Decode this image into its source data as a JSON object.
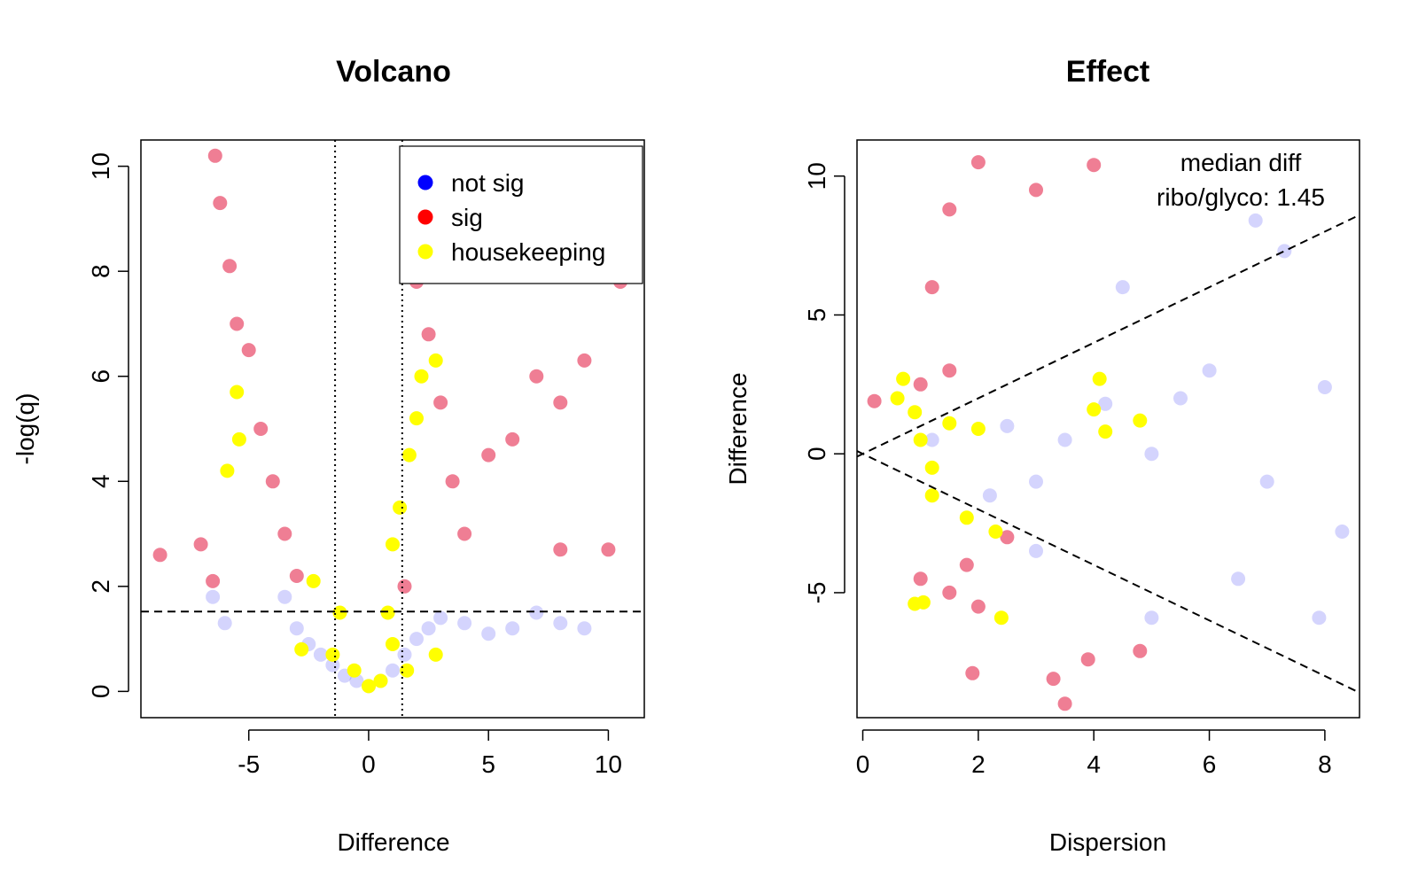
{
  "chart_data": [
    {
      "type": "scatter",
      "title": "Volcano",
      "xlabel": "Difference",
      "ylabel": "-log(q)",
      "xlim": [
        -9.5,
        11.5
      ],
      "ylim": [
        -0.5,
        10.5
      ],
      "xticks": [
        -5,
        0,
        5,
        10
      ],
      "yticks": [
        0,
        2,
        4,
        6,
        8,
        10
      ],
      "grid": false,
      "legend_position": "top-right",
      "legend": [
        {
          "label": "not sig",
          "color": "#0000ff"
        },
        {
          "label": "sig",
          "color": "#ff0000"
        },
        {
          "label": "housekeeping",
          "color": "#ffff00"
        }
      ],
      "reference_lines": {
        "vertical_dotted": [
          -1.4,
          1.4
        ],
        "horizontal_dashed": [
          1.52
        ]
      },
      "series": [
        {
          "name": "not sig",
          "color": "#0000ff",
          "points": [
            [
              -3.5,
              1.8
            ],
            [
              -3,
              1.2
            ],
            [
              -2.5,
              0.9
            ],
            [
              -2,
              0.7
            ],
            [
              -1.5,
              0.5
            ],
            [
              -1,
              0.3
            ],
            [
              -0.5,
              0.2
            ],
            [
              0,
              0.1
            ],
            [
              0.5,
              0.2
            ],
            [
              1,
              0.4
            ],
            [
              1.5,
              0.7
            ],
            [
              2,
              1.0
            ],
            [
              2.5,
              1.2
            ],
            [
              3,
              1.4
            ],
            [
              4,
              1.3
            ],
            [
              5,
              1.1
            ],
            [
              6,
              1.2
            ],
            [
              7,
              1.5
            ],
            [
              8,
              1.3
            ],
            [
              9,
              1.2
            ],
            [
              -6.5,
              1.8
            ],
            [
              -6,
              1.3
            ]
          ]
        },
        {
          "name": "sig",
          "color": "#ff0000",
          "points": [
            [
              -6.4,
              10.2
            ],
            [
              -6.2,
              9.3
            ],
            [
              -5.8,
              8.1
            ],
            [
              -5.5,
              7.0
            ],
            [
              -5,
              6.5
            ],
            [
              -4.5,
              5.0
            ],
            [
              -4,
              4.0
            ],
            [
              -3.5,
              3.0
            ],
            [
              -3,
              2.2
            ],
            [
              -8.7,
              2.6
            ],
            [
              -7,
              2.8
            ],
            [
              -6.5,
              2.1
            ],
            [
              2,
              7.8
            ],
            [
              2.5,
              6.8
            ],
            [
              3,
              5.5
            ],
            [
              3.5,
              4.0
            ],
            [
              4,
              3.0
            ],
            [
              5,
              4.5
            ],
            [
              6,
              4.8
            ],
            [
              7,
              6.0
            ],
            [
              8,
              5.5
            ],
            [
              9,
              6.3
            ],
            [
              10.5,
              7.8
            ],
            [
              10,
              2.7
            ],
            [
              8,
              2.7
            ],
            [
              1.5,
              2.0
            ]
          ]
        },
        {
          "name": "housekeeping",
          "color": "#ffff00",
          "points": [
            [
              -5.5,
              5.7
            ],
            [
              -5.4,
              4.8
            ],
            [
              -5.9,
              4.2
            ],
            [
              -2.3,
              2.1
            ],
            [
              -1.2,
              1.5
            ],
            [
              -2.8,
              0.8
            ],
            [
              -1.5,
              0.7
            ],
            [
              -0.6,
              0.4
            ],
            [
              0,
              0.1
            ],
            [
              0.5,
              0.2
            ],
            [
              0.8,
              1.5
            ],
            [
              1,
              2.8
            ],
            [
              1.3,
              3.5
            ],
            [
              1.7,
              4.5
            ],
            [
              2,
              5.2
            ],
            [
              2.2,
              6.0
            ],
            [
              2.8,
              6.3
            ],
            [
              2.8,
              0.7
            ],
            [
              1.6,
              0.4
            ],
            [
              1,
              0.9
            ]
          ]
        }
      ]
    },
    {
      "type": "scatter",
      "title": "Effect",
      "xlabel": "Dispersion",
      "ylabel": "Difference",
      "xlim": [
        -0.1,
        8.6
      ],
      "ylim": [
        -9.5,
        11.3
      ],
      "xticks": [
        0,
        2,
        4,
        6,
        8
      ],
      "yticks": [
        -5,
        0,
        5,
        10
      ],
      "grid": false,
      "annotation": [
        "median diff",
        "ribo/glyco: 1.45"
      ],
      "reference_lines": {
        "dashed_from_origin_slopes": [
          1.0,
          -1.0
        ]
      },
      "series": [
        {
          "name": "not sig",
          "color": "#0000ff",
          "points": [
            [
              4.2,
              1.8
            ],
            [
              3.5,
              0.5
            ],
            [
              3,
              -1
            ],
            [
              2.5,
              1
            ],
            [
              5,
              0
            ],
            [
              5.5,
              2
            ],
            [
              6,
              3
            ],
            [
              7,
              -1
            ],
            [
              8,
              2.4
            ],
            [
              8.3,
              -2.8
            ],
            [
              7.9,
              -5.9
            ],
            [
              6.8,
              8.4
            ],
            [
              7.3,
              7.3
            ],
            [
              6.5,
              -4.5
            ],
            [
              5,
              -5.9
            ],
            [
              3,
              -3.5
            ],
            [
              2.2,
              -1.5
            ],
            [
              4.5,
              6
            ],
            [
              1.2,
              0.5
            ]
          ]
        },
        {
          "name": "sig",
          "color": "#ff0000",
          "points": [
            [
              1.5,
              -5
            ],
            [
              1,
              -4.5
            ],
            [
              2,
              -5.5
            ],
            [
              1.8,
              -4
            ],
            [
              1,
              2.5
            ],
            [
              1.5,
              3
            ],
            [
              1.2,
              6
            ],
            [
              1.5,
              8.8
            ],
            [
              2,
              10.5
            ],
            [
              4,
              10.4
            ],
            [
              3,
              9.5
            ],
            [
              3.5,
              -9
            ],
            [
              3.3,
              -8.1
            ],
            [
              4.8,
              -7.1
            ],
            [
              0.2,
              1.9
            ],
            [
              1.9,
              -7.9
            ],
            [
              3.9,
              -7.4
            ],
            [
              2.5,
              -3
            ]
          ]
        },
        {
          "name": "housekeeping",
          "color": "#ffff00",
          "points": [
            [
              0.7,
              2.7
            ],
            [
              0.6,
              2.0
            ],
            [
              0.9,
              1.5
            ],
            [
              1.0,
              0.5
            ],
            [
              1.2,
              -0.5
            ],
            [
              1.2,
              -1.5
            ],
            [
              1.5,
              1.1
            ],
            [
              2.0,
              0.9
            ],
            [
              4.1,
              2.7
            ],
            [
              4.0,
              1.6
            ],
            [
              4.2,
              0.8
            ],
            [
              4.8,
              1.2
            ],
            [
              1.8,
              -2.3
            ],
            [
              2.3,
              -2.8
            ],
            [
              2.4,
              -5.9
            ],
            [
              0.9,
              -5.4
            ],
            [
              1.05,
              -5.35
            ]
          ]
        }
      ]
    }
  ]
}
